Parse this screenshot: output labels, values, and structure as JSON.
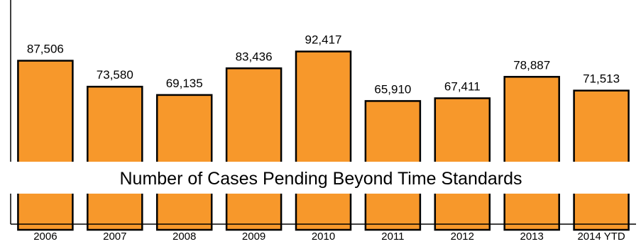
{
  "chart_data": {
    "type": "bar",
    "title": "Number of Cases Pending Beyond Time Standards",
    "categories": [
      "2006",
      "2007",
      "2008",
      "2009",
      "2010",
      "2011",
      "2012",
      "2013",
      "2014 YTD"
    ],
    "values": [
      87506,
      73580,
      69135,
      83436,
      92417,
      65910,
      67411,
      78887,
      71513
    ],
    "value_labels": [
      "87,506",
      "73,580",
      "69,135",
      "83,436",
      "92,417",
      "65,910",
      "67,411",
      "78,887",
      "71,513"
    ],
    "ylim": [
      0,
      120000
    ],
    "grid": false,
    "legend": "none",
    "bar_color": "#F7982B",
    "xlabel": "",
    "ylabel": ""
  }
}
